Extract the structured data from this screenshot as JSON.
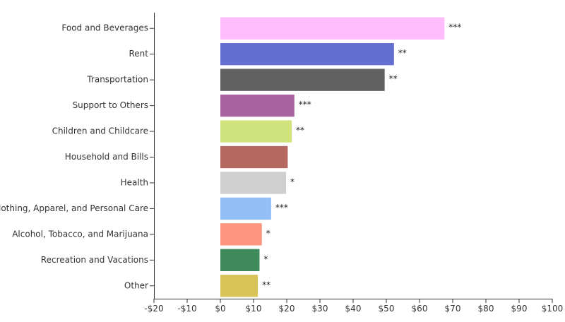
{
  "chart_data": {
    "type": "bar",
    "orientation": "horizontal",
    "categories": [
      "Food and Beverages",
      "Rent",
      "Transportation",
      "Support to Others",
      "Children and Childcare",
      "Household and Bills",
      "Health",
      "Clothing, Apparel, and Personal Care",
      "Alcohol, Tobacco, and Marijuana",
      "Recreation and Vacations",
      "Other"
    ],
    "values": [
      67.5,
      52.3,
      49.5,
      22.3,
      21.5,
      20.3,
      19.8,
      15.3,
      12.5,
      11.8,
      11.3
    ],
    "significance": [
      "***",
      "**",
      "**",
      "***",
      "**",
      "",
      "*",
      "***",
      "*",
      "*",
      "**"
    ],
    "colors": [
      "#ffbcfc",
      "#6370d2",
      "#616161",
      "#a862a0",
      "#d0e37d",
      "#b56960",
      "#cfcfcf",
      "#92bff5",
      "#fd9580",
      "#3f8a5b",
      "#d9c258"
    ],
    "xlim": [
      -20,
      100
    ],
    "xticks": [
      -20,
      -10,
      0,
      10,
      20,
      30,
      40,
      50,
      60,
      70,
      80,
      90,
      100
    ],
    "xtick_labels": [
      "-$20",
      "-$10",
      "$0",
      "$10",
      "$20",
      "$30",
      "$40",
      "$50",
      "$60",
      "$70",
      "$80",
      "$90",
      "$100"
    ],
    "title": "",
    "xlabel": "",
    "ylabel": "",
    "grid": false,
    "legend": "none"
  }
}
